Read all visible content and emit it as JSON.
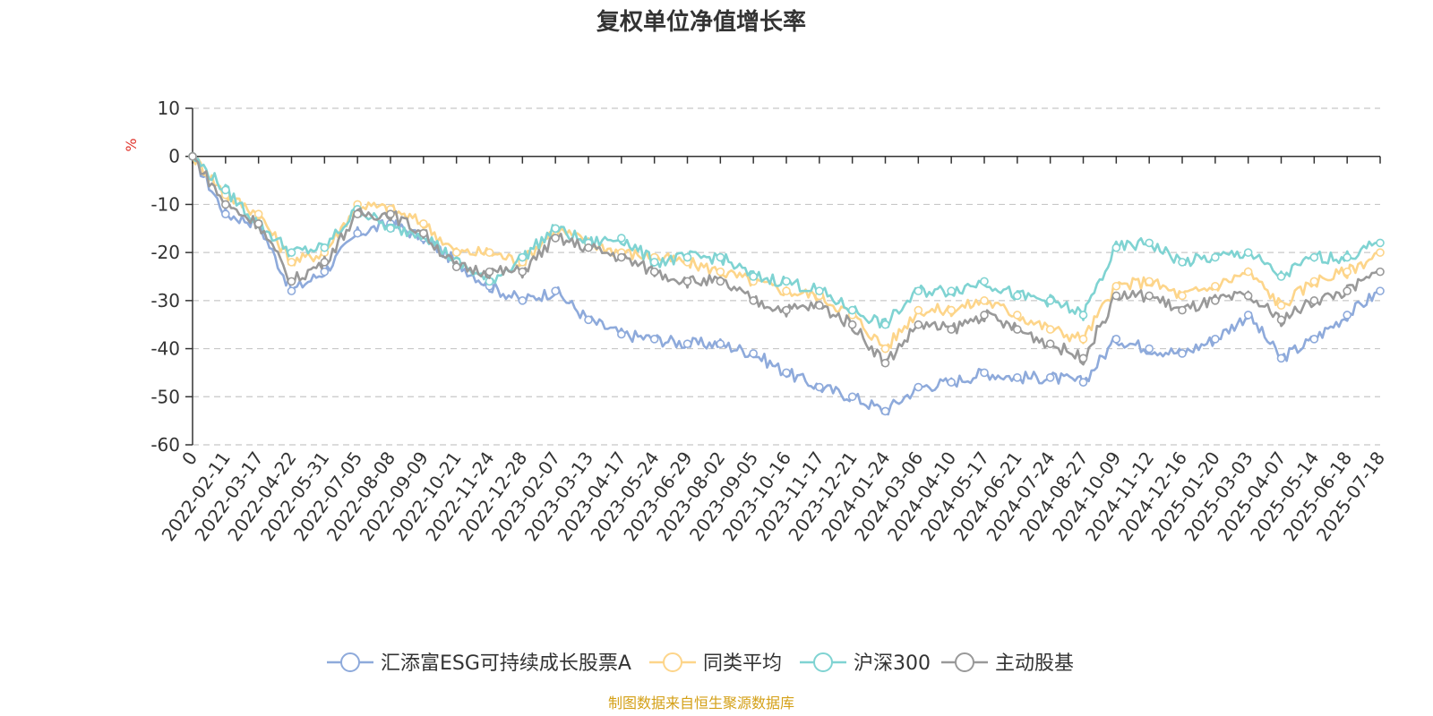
{
  "chart_data": {
    "type": "line",
    "title": "复权单位净值增长率",
    "ylabel": "%",
    "ylim": [
      -60,
      10
    ],
    "yticks": [
      10,
      0,
      -10,
      -20,
      -30,
      -40,
      -50,
      -60
    ],
    "x_tick_labels": [
      "0",
      "2022-02-11",
      "2022-03-17",
      "2022-04-22",
      "2022-05-31",
      "2022-07-05",
      "2022-08-08",
      "2022-09-09",
      "2022-10-21",
      "2022-11-24",
      "2022-12-28",
      "2023-02-07",
      "2023-03-13",
      "2023-04-17",
      "2023-05-24",
      "2023-06-29",
      "2023-08-02",
      "2023-09-05",
      "2023-10-16",
      "2023-11-17",
      "2023-12-21",
      "2024-01-24",
      "2024-03-06",
      "2024-04-10",
      "2024-05-17",
      "2024-06-21",
      "2024-07-24",
      "2024-08-27",
      "2024-10-09",
      "2024-11-12",
      "2024-12-16",
      "2025-01-20",
      "2025-03-03",
      "2025-04-07",
      "2025-05-14",
      "2025-06-18",
      "2025-07-18"
    ],
    "grid": true,
    "legend_position": "bottom",
    "series": [
      {
        "name": "汇添富ESG可持续成长股票A",
        "color": "#8eaadb",
        "values": [
          0,
          -12,
          -14,
          -28,
          -24,
          -16,
          -14,
          -17,
          -22,
          -27,
          -30,
          -28,
          -34,
          -37,
          -38,
          -39,
          -39,
          -41,
          -45,
          -48,
          -50,
          -53,
          -48,
          -47,
          -45,
          -46,
          -46,
          -47,
          -38,
          -40,
          -41,
          -38,
          -33,
          -42,
          -38,
          -33,
          -28
        ]
      },
      {
        "name": "同类平均",
        "color": "#fdd58a",
        "values": [
          0,
          -8,
          -12,
          -22,
          -20,
          -10,
          -11,
          -14,
          -20,
          -20,
          -22,
          -15,
          -18,
          -20,
          -21,
          -22,
          -24,
          -26,
          -28,
          -29,
          -33,
          -40,
          -32,
          -32,
          -30,
          -33,
          -36,
          -38,
          -27,
          -26,
          -29,
          -27,
          -24,
          -31,
          -26,
          -24,
          -20
        ]
      },
      {
        "name": "沪深300",
        "color": "#7fd3d2",
        "values": [
          0,
          -7,
          -14,
          -20,
          -19,
          -11,
          -15,
          -16,
          -22,
          -26,
          -21,
          -15,
          -18,
          -17,
          -22,
          -21,
          -21,
          -25,
          -26,
          -28,
          -32,
          -35,
          -28,
          -28,
          -26,
          -29,
          -30,
          -33,
          -19,
          -18,
          -22,
          -21,
          -20,
          -25,
          -21,
          -21,
          -18
        ]
      },
      {
        "name": "主动股基",
        "color": "#999999",
        "values": [
          0,
          -10,
          -14,
          -26,
          -22,
          -12,
          -12,
          -16,
          -23,
          -24,
          -24,
          -17,
          -19,
          -21,
          -24,
          -26,
          -26,
          -30,
          -32,
          -31,
          -35,
          -43,
          -35,
          -36,
          -33,
          -36,
          -39,
          -42,
          -29,
          -29,
          -32,
          -30,
          -29,
          -34,
          -30,
          -28,
          -24
        ]
      }
    ]
  },
  "source_note": "制图数据来自恒生聚源数据库"
}
